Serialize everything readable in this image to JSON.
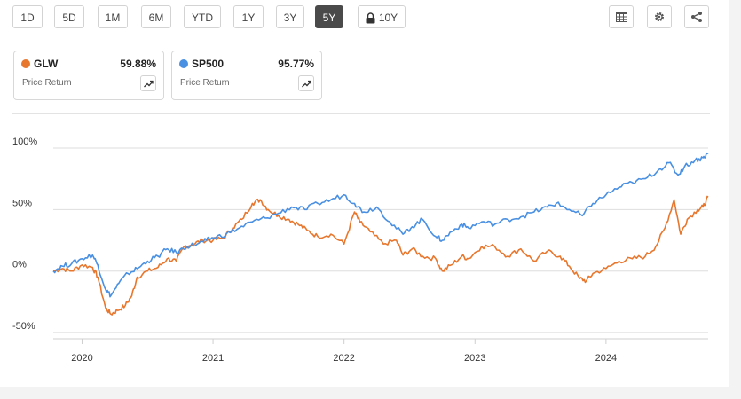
{
  "toolbar": {
    "ranges": [
      "1D",
      "5D",
      "1M",
      "6M",
      "YTD",
      "1Y",
      "3Y",
      "5Y",
      "10Y"
    ],
    "active": "5Y",
    "locked": "10Y",
    "tools": [
      "table-icon",
      "gear-icon",
      "share-icon"
    ]
  },
  "cards": [
    {
      "symbol": "GLW",
      "value": "59.88%",
      "subtitle": "Price Return",
      "color": "#e8772e"
    },
    {
      "symbol": "SP500",
      "value": "95.77%",
      "subtitle": "Price Return",
      "color": "#4a90e2"
    }
  ],
  "chart_data": {
    "type": "line",
    "title": "",
    "xlabel": "",
    "ylabel": "",
    "x_ticks": [
      "2020",
      "2021",
      "2022",
      "2023",
      "2024"
    ],
    "y_ticks": [
      "100%",
      "50%",
      "0%",
      "-50%"
    ],
    "y_tick_values": [
      100,
      50,
      0,
      -50
    ],
    "ylim": [
      -55,
      105
    ],
    "xlim": [
      2019.78,
      2024.78
    ],
    "grid": "horizontal",
    "legend": "cards above chart",
    "series": [
      {
        "name": "GLW",
        "color": "#e8772e",
        "points": [
          [
            2019.78,
            0
          ],
          [
            2019.85,
            2
          ],
          [
            2019.92,
            0
          ],
          [
            2020.0,
            5
          ],
          [
            2020.08,
            3
          ],
          [
            2020.12,
            -5
          ],
          [
            2020.18,
            -30
          ],
          [
            2020.22,
            -35
          ],
          [
            2020.27,
            -32
          ],
          [
            2020.33,
            -28
          ],
          [
            2020.38,
            -20
          ],
          [
            2020.42,
            -5
          ],
          [
            2020.5,
            0
          ],
          [
            2020.58,
            3
          ],
          [
            2020.65,
            10
          ],
          [
            2020.72,
            8
          ],
          [
            2020.78,
            20
          ],
          [
            2020.85,
            22
          ],
          [
            2020.92,
            25
          ],
          [
            2021.0,
            25
          ],
          [
            2021.08,
            27
          ],
          [
            2021.15,
            35
          ],
          [
            2021.22,
            42
          ],
          [
            2021.3,
            55
          ],
          [
            2021.36,
            58
          ],
          [
            2021.42,
            50
          ],
          [
            2021.5,
            45
          ],
          [
            2021.58,
            42
          ],
          [
            2021.65,
            38
          ],
          [
            2021.72,
            33
          ],
          [
            2021.8,
            28
          ],
          [
            2021.9,
            30
          ],
          [
            2022.0,
            22
          ],
          [
            2022.08,
            48
          ],
          [
            2022.12,
            40
          ],
          [
            2022.2,
            32
          ],
          [
            2022.3,
            22
          ],
          [
            2022.4,
            25
          ],
          [
            2022.45,
            13
          ],
          [
            2022.52,
            18
          ],
          [
            2022.6,
            12
          ],
          [
            2022.7,
            10
          ],
          [
            2022.75,
            0
          ],
          [
            2022.82,
            5
          ],
          [
            2022.9,
            12
          ],
          [
            2022.95,
            10
          ],
          [
            2023.05,
            20
          ],
          [
            2023.15,
            20
          ],
          [
            2023.25,
            12
          ],
          [
            2023.35,
            18
          ],
          [
            2023.45,
            8
          ],
          [
            2023.55,
            16
          ],
          [
            2023.65,
            12
          ],
          [
            2023.72,
            4
          ],
          [
            2023.8,
            -6
          ],
          [
            2023.85,
            -8
          ],
          [
            2023.9,
            -2
          ],
          [
            2024.0,
            2
          ],
          [
            2024.1,
            8
          ],
          [
            2024.2,
            10
          ],
          [
            2024.3,
            12
          ],
          [
            2024.38,
            20
          ],
          [
            2024.45,
            35
          ],
          [
            2024.52,
            58
          ],
          [
            2024.57,
            30
          ],
          [
            2024.62,
            42
          ],
          [
            2024.7,
            50
          ],
          [
            2024.74,
            52
          ],
          [
            2024.78,
            60
          ]
        ]
      },
      {
        "name": "SP500",
        "color": "#4a90e2",
        "points": [
          [
            2019.78,
            0
          ],
          [
            2019.85,
            4
          ],
          [
            2019.92,
            6
          ],
          [
            2020.0,
            10
          ],
          [
            2020.08,
            13
          ],
          [
            2020.12,
            5
          ],
          [
            2020.18,
            -15
          ],
          [
            2020.22,
            -20
          ],
          [
            2020.28,
            -10
          ],
          [
            2020.35,
            -2
          ],
          [
            2020.42,
            2
          ],
          [
            2020.5,
            8
          ],
          [
            2020.58,
            12
          ],
          [
            2020.65,
            18
          ],
          [
            2020.72,
            15
          ],
          [
            2020.8,
            20
          ],
          [
            2020.88,
            22
          ],
          [
            2020.95,
            25
          ],
          [
            2021.0,
            27
          ],
          [
            2021.1,
            30
          ],
          [
            2021.2,
            35
          ],
          [
            2021.3,
            40
          ],
          [
            2021.4,
            43
          ],
          [
            2021.5,
            47
          ],
          [
            2021.6,
            52
          ],
          [
            2021.7,
            50
          ],
          [
            2021.8,
            55
          ],
          [
            2021.9,
            58
          ],
          [
            2022.0,
            62
          ],
          [
            2022.08,
            55
          ],
          [
            2022.15,
            48
          ],
          [
            2022.25,
            52
          ],
          [
            2022.35,
            40
          ],
          [
            2022.45,
            30
          ],
          [
            2022.52,
            36
          ],
          [
            2022.6,
            42
          ],
          [
            2022.7,
            28
          ],
          [
            2022.75,
            25
          ],
          [
            2022.82,
            32
          ],
          [
            2022.9,
            38
          ],
          [
            2022.95,
            35
          ],
          [
            2023.05,
            40
          ],
          [
            2023.15,
            38
          ],
          [
            2023.25,
            42
          ],
          [
            2023.35,
            44
          ],
          [
            2023.45,
            48
          ],
          [
            2023.55,
            52
          ],
          [
            2023.62,
            55
          ],
          [
            2023.72,
            50
          ],
          [
            2023.82,
            45
          ],
          [
            2023.9,
            55
          ],
          [
            2024.0,
            62
          ],
          [
            2024.1,
            68
          ],
          [
            2024.2,
            72
          ],
          [
            2024.3,
            75
          ],
          [
            2024.4,
            82
          ],
          [
            2024.48,
            88
          ],
          [
            2024.55,
            78
          ],
          [
            2024.6,
            85
          ],
          [
            2024.68,
            90
          ],
          [
            2024.74,
            92
          ],
          [
            2024.78,
            96
          ]
        ]
      }
    ]
  }
}
